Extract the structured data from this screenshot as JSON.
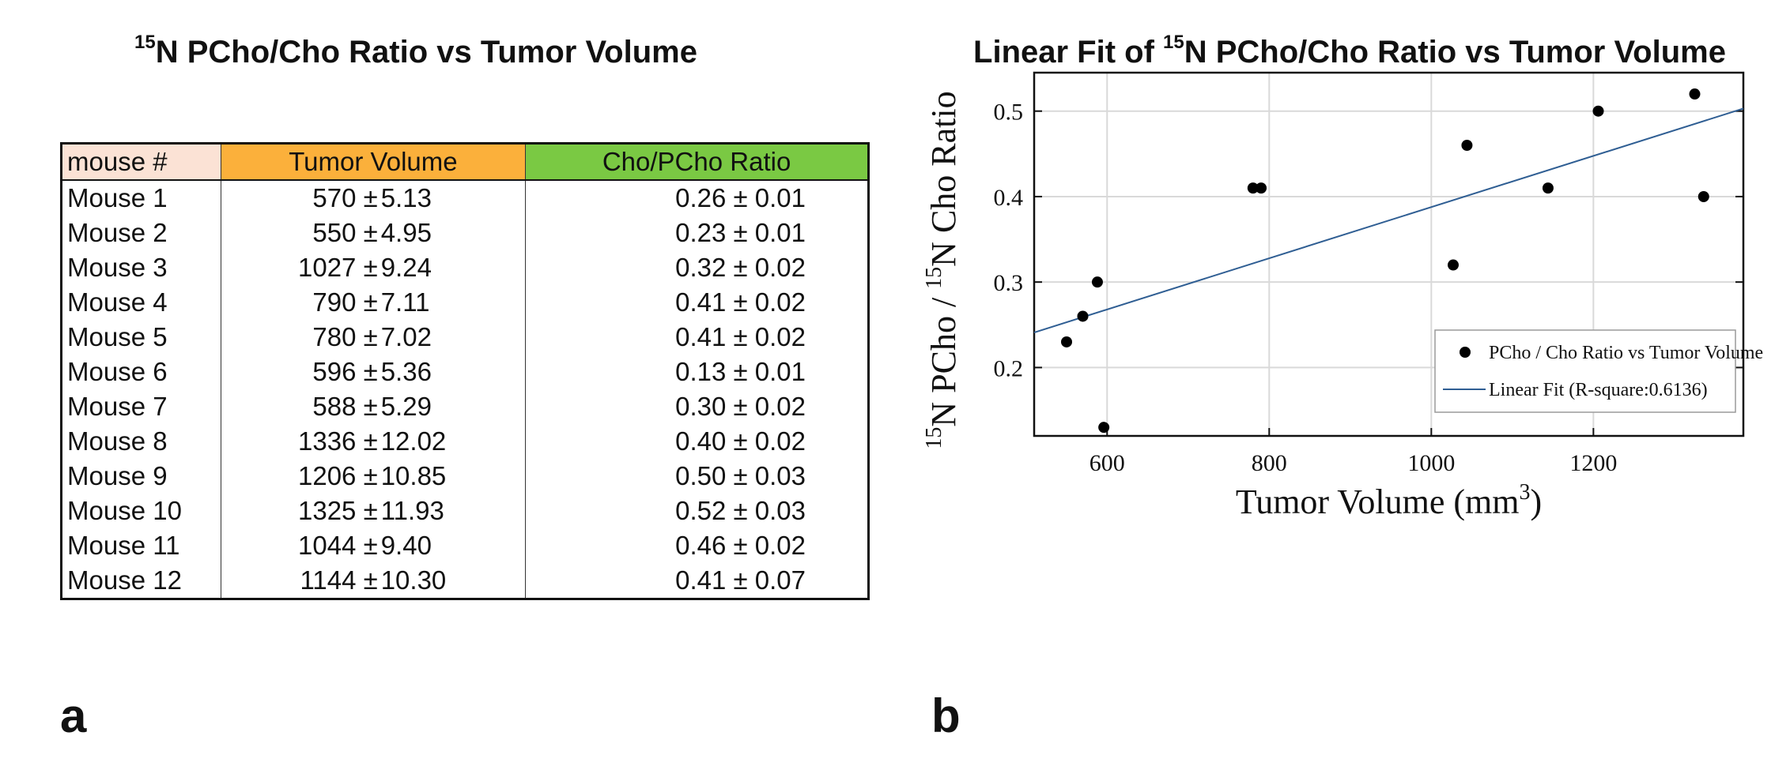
{
  "panel_a": {
    "title_sup": "15",
    "title_text": "N PCho/Cho Ratio vs Tumor Volume",
    "letter": "a",
    "table": {
      "headers": [
        "mouse #",
        "Tumor Volume",
        "Cho/PCho Ratio"
      ],
      "rows": [
        {
          "mouse": "Mouse 1",
          "volume": "570 ±",
          "volume_err": "5.13",
          "ratio": "0.26 ± 0.01"
        },
        {
          "mouse": "Mouse 2",
          "volume": "550 ±",
          "volume_err": "4.95",
          "ratio": "0.23 ± 0.01"
        },
        {
          "mouse": "Mouse 3",
          "volume": "1027 ±",
          "volume_err": "9.24",
          "ratio": "0.32 ± 0.02"
        },
        {
          "mouse": "Mouse 4",
          "volume": "790 ±",
          "volume_err": "7.11",
          "ratio": "0.41 ± 0.02"
        },
        {
          "mouse": "Mouse 5",
          "volume": "780 ±",
          "volume_err": "7.02",
          "ratio": "0.41 ± 0.02"
        },
        {
          "mouse": "Mouse 6",
          "volume": "596 ±",
          "volume_err": "5.36",
          "ratio": "0.13 ± 0.01"
        },
        {
          "mouse": "Mouse 7",
          "volume": "588 ±",
          "volume_err": "5.29",
          "ratio": "0.30 ± 0.02"
        },
        {
          "mouse": "Mouse 8",
          "volume": "1336 ±",
          "volume_err": "12.02",
          "ratio": "0.40 ± 0.02"
        },
        {
          "mouse": "Mouse 9",
          "volume": "1206 ±",
          "volume_err": "10.85",
          "ratio": "0.50 ± 0.03"
        },
        {
          "mouse": "Mouse 10",
          "volume": "1325 ±",
          "volume_err": "11.93",
          "ratio": "0.52 ± 0.03"
        },
        {
          "mouse": "Mouse 11",
          "volume": "1044 ±",
          "volume_err": "9.40",
          "ratio": "0.46 ± 0.02"
        },
        {
          "mouse": "Mouse 12",
          "volume": "1144 ±",
          "volume_err": "10.30",
          "ratio": "0.41 ± 0.07"
        }
      ]
    }
  },
  "panel_b": {
    "letter": "b",
    "title_prefix": "Linear Fit of ",
    "title_sup": "15",
    "title_text": "N PCho/Cho Ratio vs Tumor Volume"
  },
  "chart_data": {
    "type": "scatter",
    "title": "Linear Fit of 15N PCho/Cho Ratio vs Tumor Volume",
    "xlabel": "Tumor Volume (mm3)",
    "xlabel_main": "Tumor Volume (mm",
    "xlabel_sup": "3",
    "xlabel_close": ")",
    "ylabel": "15N PCho / 15N Cho Ratio",
    "ylabel_sup1": "15",
    "ylabel_part1": "N PCho / ",
    "ylabel_sup2": "15",
    "ylabel_part2": "N Cho Ratio",
    "xlim": [
      510,
      1385
    ],
    "ylim": [
      0.12,
      0.545
    ],
    "xticks": [
      600,
      800,
      1000,
      1200
    ],
    "yticks": [
      0.2,
      0.3,
      0.4,
      0.5
    ],
    "xtick_labels": [
      "600",
      "800",
      "1000",
      "1200"
    ],
    "ytick_labels": [
      "0.2",
      "0.3",
      "0.4",
      "0.5"
    ],
    "grid": true,
    "series": [
      {
        "name": "PCho / Cho Ratio vs Tumor Volume",
        "kind": "scatter",
        "x": [
          570,
          550,
          1027,
          790,
          780,
          596,
          588,
          1336,
          1206,
          1325,
          1044,
          1144
        ],
        "y": [
          0.26,
          0.23,
          0.32,
          0.41,
          0.41,
          0.13,
          0.3,
          0.4,
          0.5,
          0.52,
          0.46,
          0.41
        ],
        "color": "#000000"
      },
      {
        "name": "Linear Fit (R-square:0.6136)",
        "kind": "line",
        "x": [
          510,
          1385
        ],
        "y": [
          0.241,
          0.503
        ],
        "color": "#2f5e93"
      }
    ],
    "legend_position": "bottom-right"
  }
}
